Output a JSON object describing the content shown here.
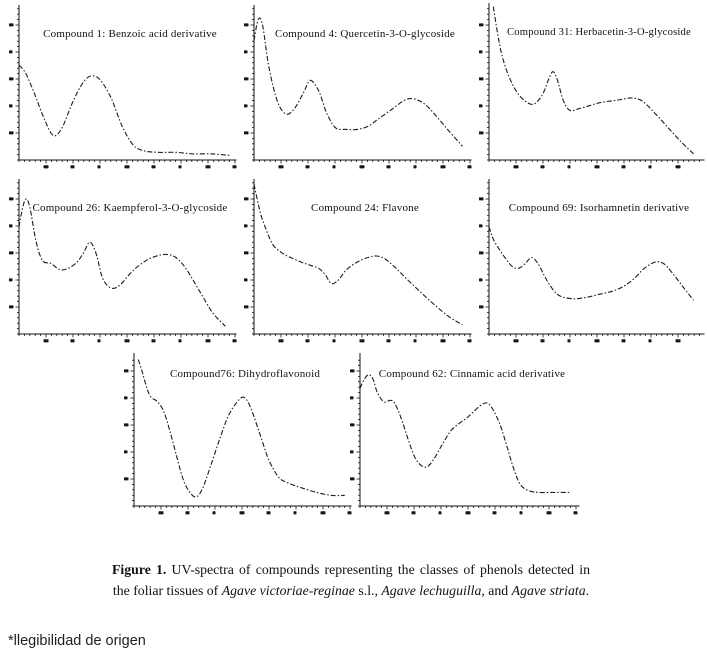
{
  "figure": {
    "caption": {
      "label": "Figure 1.",
      "text1": " UV-spectra of compounds representing the classes of phenols detected in the foliar tissues of ",
      "species1": "Agave victoriae-reginae",
      "text2": " s.l., ",
      "species2": "Agave lechuguilla",
      "text3": ", and ",
      "species3": "Agave striata",
      "text4": "."
    },
    "footnote": "*llegibilidad de origen"
  },
  "colors": {
    "background": "#ffffff",
    "line": "#1c1c1c",
    "axis": "#111111",
    "text": "#111111"
  },
  "axes_note": "Each spectrum panel has an L-shaped axis with minor/major ticks; all numeric tick labels are visible only as illegible smudges in the source scan (see footnote).",
  "chart_data": [
    {
      "type": "line",
      "title": "Compound 1: Benzoic acid derivative",
      "line_style": "black dash-dot",
      "axis_tick_labels": "illegible",
      "xlim_pct": [
        0,
        100
      ],
      "ylim_pct": [
        0,
        100
      ],
      "points_pct": [
        [
          0,
          62
        ],
        [
          3,
          57
        ],
        [
          7,
          44
        ],
        [
          12,
          26
        ],
        [
          16,
          16
        ],
        [
          20,
          21
        ],
        [
          25,
          38
        ],
        [
          30,
          51
        ],
        [
          34,
          55
        ],
        [
          38,
          52
        ],
        [
          43,
          40
        ],
        [
          48,
          22
        ],
        [
          53,
          10
        ],
        [
          58,
          6
        ],
        [
          65,
          5
        ],
        [
          73,
          5
        ],
        [
          81,
          4
        ],
        [
          90,
          4
        ],
        [
          98,
          3
        ]
      ]
    },
    {
      "type": "line",
      "title": "Compound 4: Quercetin-3-O-glycoside",
      "line_style": "black dash-dot",
      "axis_tick_labels": "illegible",
      "xlim_pct": [
        0,
        100
      ],
      "ylim_pct": [
        0,
        100
      ],
      "points_pct": [
        [
          0,
          78
        ],
        [
          2,
          92
        ],
        [
          4,
          88
        ],
        [
          7,
          60
        ],
        [
          11,
          38
        ],
        [
          15,
          30
        ],
        [
          19,
          34
        ],
        [
          23,
          44
        ],
        [
          26,
          52
        ],
        [
          29,
          48
        ],
        [
          31,
          42
        ],
        [
          34,
          30
        ],
        [
          38,
          21
        ],
        [
          43,
          20
        ],
        [
          48,
          20
        ],
        [
          53,
          22
        ],
        [
          58,
          27
        ],
        [
          64,
          33
        ],
        [
          70,
          39
        ],
        [
          74,
          40
        ],
        [
          79,
          37
        ],
        [
          84,
          30
        ],
        [
          90,
          20
        ],
        [
          97,
          9
        ]
      ]
    },
    {
      "type": "line",
      "title": "Compound 31: Herbacetin-3-O-glycoside",
      "line_style": "black dash-dot",
      "axis_tick_labels": "illegible",
      "xlim_pct": [
        0,
        100
      ],
      "ylim_pct": [
        0,
        100
      ],
      "points_pct": [
        [
          2,
          99
        ],
        [
          4,
          82
        ],
        [
          6,
          68
        ],
        [
          9,
          55
        ],
        [
          13,
          44
        ],
        [
          17,
          38
        ],
        [
          21,
          36
        ],
        [
          25,
          42
        ],
        [
          28,
          52
        ],
        [
          30,
          57
        ],
        [
          32,
          52
        ],
        [
          35,
          38
        ],
        [
          38,
          32
        ],
        [
          42,
          33
        ],
        [
          47,
          35
        ],
        [
          52,
          37
        ],
        [
          57,
          38
        ],
        [
          62,
          39
        ],
        [
          67,
          40
        ],
        [
          72,
          38
        ],
        [
          78,
          30
        ],
        [
          84,
          21
        ],
        [
          90,
          12
        ],
        [
          96,
          4
        ]
      ]
    },
    {
      "type": "line",
      "title": "Compound 26: Kaempferol-3-O-glycoside",
      "line_style": "black dash-dot",
      "axis_tick_labels": "illegible",
      "xlim_pct": [
        0,
        100
      ],
      "ylim_pct": [
        0,
        100
      ],
      "points_pct": [
        [
          0,
          70
        ],
        [
          1,
          78
        ],
        [
          3,
          88
        ],
        [
          5,
          83
        ],
        [
          8,
          60
        ],
        [
          11,
          48
        ],
        [
          15,
          46
        ],
        [
          19,
          42
        ],
        [
          23,
          43
        ],
        [
          27,
          47
        ],
        [
          30,
          53
        ],
        [
          33,
          60
        ],
        [
          36,
          52
        ],
        [
          39,
          36
        ],
        [
          43,
          30
        ],
        [
          47,
          32
        ],
        [
          52,
          40
        ],
        [
          57,
          46
        ],
        [
          62,
          50
        ],
        [
          68,
          52
        ],
        [
          73,
          50
        ],
        [
          78,
          42
        ],
        [
          84,
          28
        ],
        [
          90,
          14
        ],
        [
          96,
          5
        ]
      ]
    },
    {
      "type": "line",
      "title": "Compound 24: Flavone",
      "line_style": "black dash-dot",
      "axis_tick_labels": "illegible",
      "xlim_pct": [
        0,
        100
      ],
      "ylim_pct": [
        0,
        100
      ],
      "points_pct": [
        [
          0,
          98
        ],
        [
          3,
          79
        ],
        [
          6,
          67
        ],
        [
          9,
          58
        ],
        [
          13,
          53
        ],
        [
          17,
          50
        ],
        [
          22,
          47
        ],
        [
          26,
          45
        ],
        [
          30,
          43
        ],
        [
          33,
          39
        ],
        [
          36,
          33
        ],
        [
          39,
          35
        ],
        [
          43,
          42
        ],
        [
          48,
          47
        ],
        [
          53,
          50
        ],
        [
          57,
          51
        ],
        [
          61,
          49
        ],
        [
          66,
          43
        ],
        [
          71,
          36
        ],
        [
          77,
          28
        ],
        [
          84,
          19
        ],
        [
          91,
          11
        ],
        [
          97,
          6
        ]
      ]
    },
    {
      "type": "line",
      "title": "Compound 69: Isorhamnetin derivative",
      "line_style": "black dash-dot",
      "axis_tick_labels": "illegible",
      "xlim_pct": [
        0,
        100
      ],
      "ylim_pct": [
        0,
        100
      ],
      "points_pct": [
        [
          0,
          70
        ],
        [
          2,
          62
        ],
        [
          5,
          55
        ],
        [
          8,
          49
        ],
        [
          11,
          44
        ],
        [
          14,
          43
        ],
        [
          17,
          46
        ],
        [
          20,
          50
        ],
        [
          23,
          46
        ],
        [
          26,
          38
        ],
        [
          29,
          31
        ],
        [
          32,
          26
        ],
        [
          35,
          24
        ],
        [
          40,
          23
        ],
        [
          46,
          24
        ],
        [
          52,
          26
        ],
        [
          58,
          28
        ],
        [
          63,
          31
        ],
        [
          68,
          36
        ],
        [
          73,
          43
        ],
        [
          78,
          47
        ],
        [
          82,
          46
        ],
        [
          86,
          40
        ],
        [
          91,
          31
        ],
        [
          96,
          22
        ]
      ]
    },
    {
      "type": "line",
      "title": "Compound76: Dihydroflavonoid",
      "line_style": "black dash-dot",
      "axis_tick_labels": "illegible",
      "xlim_pct": [
        0,
        100
      ],
      "ylim_pct": [
        0,
        100
      ],
      "points_pct": [
        [
          2,
          97
        ],
        [
          4,
          88
        ],
        [
          6,
          78
        ],
        [
          8,
          72
        ],
        [
          11,
          69
        ],
        [
          14,
          62
        ],
        [
          17,
          48
        ],
        [
          20,
          32
        ],
        [
          23,
          17
        ],
        [
          26,
          9
        ],
        [
          29,
          6
        ],
        [
          32,
          12
        ],
        [
          36,
          28
        ],
        [
          40,
          45
        ],
        [
          44,
          60
        ],
        [
          48,
          69
        ],
        [
          51,
          72
        ],
        [
          54,
          66
        ],
        [
          58,
          50
        ],
        [
          62,
          33
        ],
        [
          65,
          24
        ],
        [
          68,
          18
        ],
        [
          72,
          15
        ],
        [
          78,
          12
        ],
        [
          85,
          9
        ],
        [
          92,
          7
        ],
        [
          98,
          7
        ]
      ]
    },
    {
      "type": "line",
      "title": "Compound 62: Cinnamic acid derivative",
      "line_style": "black dash-dot",
      "axis_tick_labels": "illegible",
      "xlim_pct": [
        0,
        100
      ],
      "ylim_pct": [
        0,
        100
      ],
      "points_pct": [
        [
          0,
          78
        ],
        [
          2,
          84
        ],
        [
          4,
          87
        ],
        [
          6,
          84
        ],
        [
          8,
          75
        ],
        [
          11,
          69
        ],
        [
          14,
          70
        ],
        [
          16,
          68
        ],
        [
          19,
          58
        ],
        [
          22,
          45
        ],
        [
          25,
          33
        ],
        [
          28,
          27
        ],
        [
          31,
          26
        ],
        [
          34,
          31
        ],
        [
          38,
          41
        ],
        [
          42,
          50
        ],
        [
          46,
          55
        ],
        [
          49,
          58
        ],
        [
          52,
          62
        ],
        [
          56,
          67
        ],
        [
          59,
          68
        ],
        [
          62,
          62
        ],
        [
          65,
          52
        ],
        [
          68,
          38
        ],
        [
          71,
          24
        ],
        [
          74,
          14
        ],
        [
          78,
          10
        ],
        [
          83,
          9
        ],
        [
          90,
          9
        ],
        [
          97,
          9
        ]
      ]
    }
  ]
}
